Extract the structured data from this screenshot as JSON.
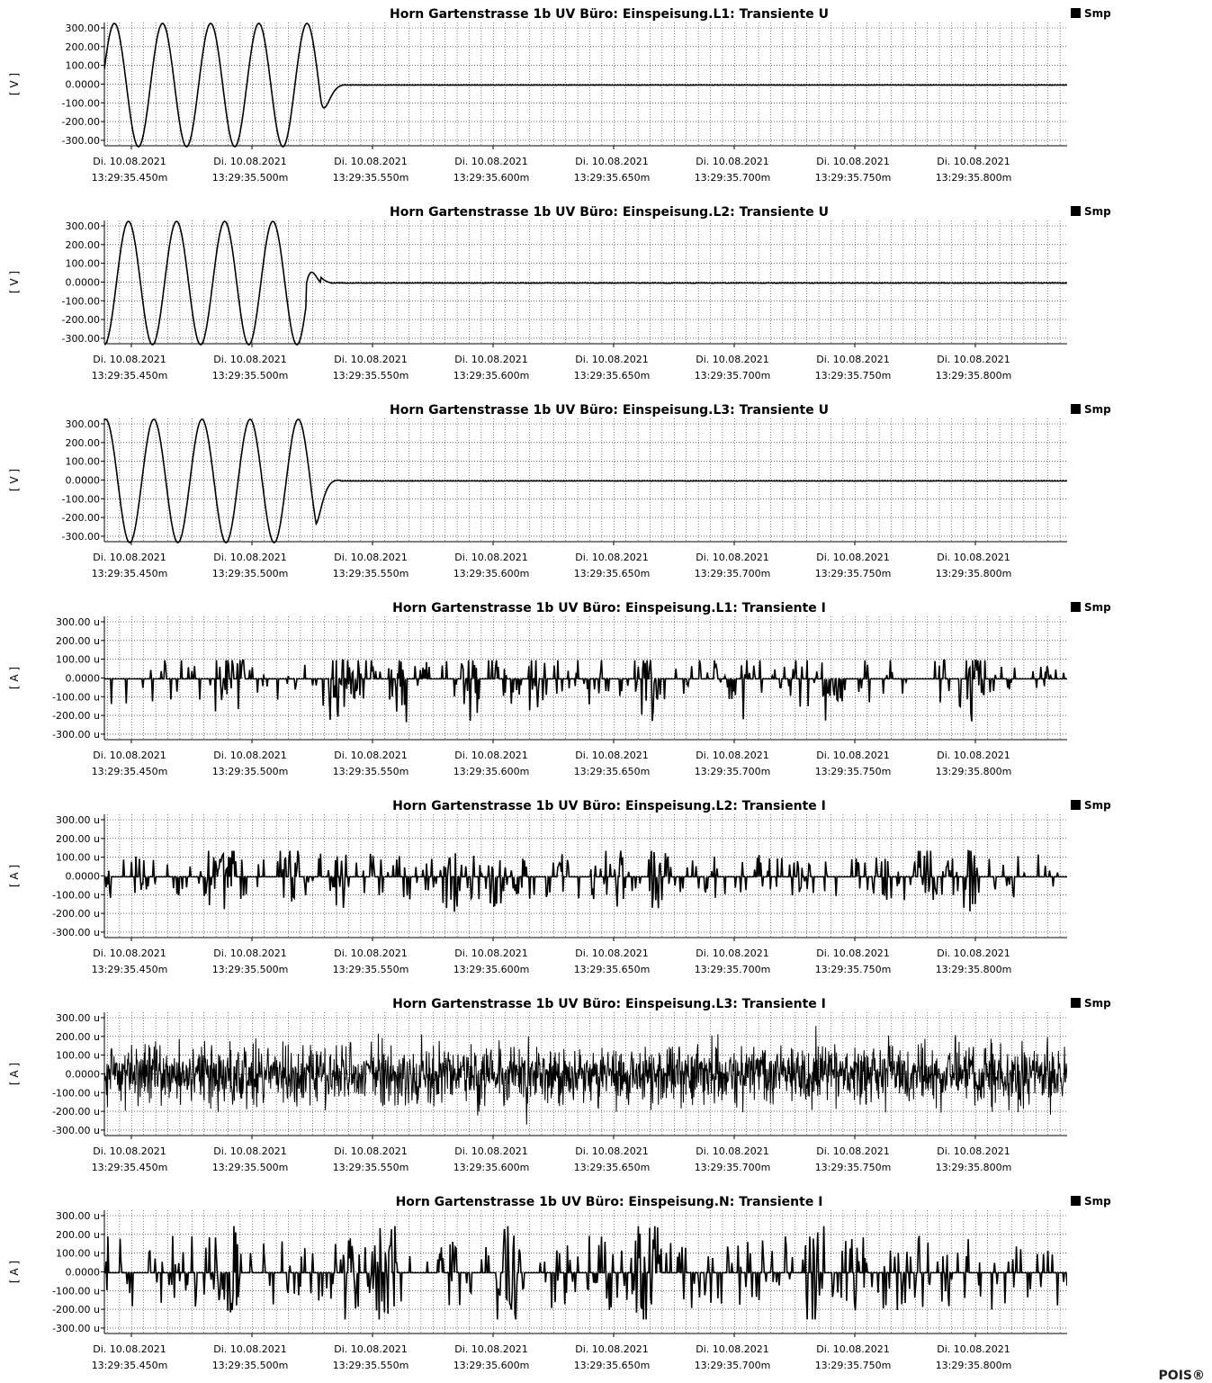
{
  "brand": "POIS®",
  "legend_label": "Smp",
  "x_ticks": [
    {
      "date": "Di. 10.08.2021",
      "time": "13:29:35.450m"
    },
    {
      "date": "Di. 10.08.2021",
      "time": "13:29:35.500m"
    },
    {
      "date": "Di. 10.08.2021",
      "time": "13:29:35.550m"
    },
    {
      "date": "Di. 10.08.2021",
      "time": "13:29:35.600m"
    },
    {
      "date": "Di. 10.08.2021",
      "time": "13:29:35.650m"
    },
    {
      "date": "Di. 10.08.2021",
      "time": "13:29:35.700m"
    },
    {
      "date": "Di. 10.08.2021",
      "time": "13:29:35.750m"
    },
    {
      "date": "Di. 10.08.2021",
      "time": "13:29:35.800m"
    }
  ],
  "colors": {
    "trace": "#000000",
    "grid": "#000000",
    "legend": "#000000"
  },
  "chart_data": [
    {
      "type": "line",
      "title": "Horn Gartenstrasse 1b UV Büro:   Einspeisung.L1:   Transiente U",
      "ylabel": "[ V ]",
      "yticks": [
        "300.00",
        "200.00",
        "100.00",
        "0.0000",
        "-100.00",
        "-200.00",
        "-300.00"
      ],
      "ylim": [
        -325,
        335
      ],
      "xlim_ms": [
        438,
        838
      ],
      "series": [
        {
          "name": "Smp",
          "kind": "sine",
          "amplitude": 330,
          "period_ms": 20,
          "start_ms": 438,
          "phase_deg": 15,
          "cutoff_ms": 528,
          "decay_ms": 2.5,
          "residual_noise": 2
        }
      ]
    },
    {
      "type": "line",
      "title": "Horn Gartenstrasse 1b UV Büro:   Einspeisung.L2:   Transiente U",
      "ylabel": "[ V ]",
      "yticks": [
        "300.00",
        "200.00",
        "100.00",
        "0.0000",
        "-100.00",
        "-200.00",
        "-300.00"
      ],
      "ylim": [
        -325,
        335
      ],
      "xlim_ms": [
        438,
        838
      ],
      "series": [
        {
          "name": "Smp",
          "kind": "sine",
          "amplitude": 330,
          "period_ms": 20,
          "start_ms": 438,
          "phase_deg": -90,
          "cutoff_ms": 522,
          "decay_ms": 2.5,
          "bump": 110,
          "residual_noise": 3
        }
      ]
    },
    {
      "type": "line",
      "title": "Horn Gartenstrasse 1b UV Büro:   Einspeisung.L3:   Transiente U",
      "ylabel": "[ V ]",
      "yticks": [
        "300.00",
        "200.00",
        "100.00",
        "0.0000",
        "-100.00",
        "-200.00",
        "-300.00"
      ],
      "ylim": [
        -325,
        335
      ],
      "xlim_ms": [
        438,
        838
      ],
      "series": [
        {
          "name": "Smp",
          "kind": "sine",
          "amplitude": 330,
          "period_ms": 20,
          "start_ms": 438,
          "phase_deg": 80,
          "cutoff_ms": 526,
          "decay_ms": 2.5,
          "residual_noise": 2
        }
      ]
    },
    {
      "type": "line",
      "title": "Horn Gartenstrasse 1b UV Büro:   Einspeisung.L1:   Transiente I",
      "ylabel": "[ A ]",
      "yticks": [
        "300.00 u",
        "200.00 u",
        "100.00 u",
        "0.0000",
        "-100.00 u",
        "-200.00 u",
        "-300.00 u"
      ],
      "ylim": [
        -325,
        335
      ],
      "xlim_ms": [
        438,
        838
      ],
      "series": [
        {
          "name": "Smp",
          "kind": "spikes",
          "seed": 11,
          "amp_up": 100,
          "amp_down": 260,
          "density": 0.22,
          "bursts_ms": [
            488,
            492,
            535,
            542,
            560,
            590,
            618,
            662,
            665,
            700,
            740,
            800
          ]
        }
      ]
    },
    {
      "type": "line",
      "title": "Horn Gartenstrasse 1b UV Büro:   Einspeisung.L2:   Transiente I",
      "ylabel": "[ A ]",
      "yticks": [
        "300.00 u",
        "200.00 u",
        "100.00 u",
        "0.0000",
        "-100.00 u",
        "-200.00 u",
        "-300.00 u"
      ],
      "ylim": [
        -325,
        335
      ],
      "xlim_ms": [
        438,
        838
      ],
      "series": [
        {
          "name": "Smp",
          "kind": "spikes",
          "seed": 23,
          "amp_up": 140,
          "amp_down": 210,
          "density": 0.24,
          "bursts_ms": [
            484,
            488,
            515,
            535,
            582,
            602,
            650,
            668,
            780,
            797
          ]
        }
      ]
    },
    {
      "type": "line",
      "title": "Horn Gartenstrasse 1b UV Büro:   Einspeisung.L3:   Transiente I",
      "ylabel": "[ A ]",
      "yticks": [
        "300.00 u",
        "200.00 u",
        "100.00 u",
        "0.0000",
        "-100.00 u",
        "-200.00 u",
        "-300.00 u"
      ],
      "ylim": [
        -325,
        335
      ],
      "xlim_ms": [
        438,
        838
      ],
      "series": [
        {
          "name": "Smp",
          "kind": "noise",
          "seed": 37,
          "amp": 300
        }
      ]
    },
    {
      "type": "line",
      "title": "Horn Gartenstrasse 1b UV Büro:   Einspeisung.N:   Transiente I",
      "ylabel": "[ A ]",
      "yticks": [
        "300.00 u",
        "200.00 u",
        "100.00 u",
        "0.0000",
        "-100.00 u",
        "-200.00 u",
        "-300.00 u"
      ],
      "ylim": [
        -325,
        335
      ],
      "xlim_ms": [
        438,
        838
      ],
      "series": [
        {
          "name": "Smp",
          "kind": "spikes",
          "seed": 51,
          "amp_up": 250,
          "amp_down": 250,
          "density": 0.28,
          "bursts_ms": [
            487,
            490,
            540,
            555,
            605,
            610,
            663,
            665,
            733,
            750
          ]
        }
      ]
    }
  ]
}
